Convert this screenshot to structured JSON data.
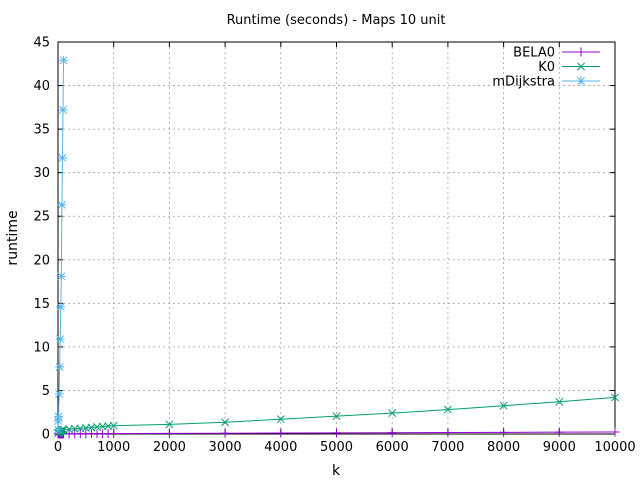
{
  "chart_data": {
    "type": "line",
    "title": "Runtime (seconds) - Maps 10 unit",
    "xlabel": "k",
    "ylabel": "runtime",
    "xlim": [
      0,
      10000
    ],
    "ylim": [
      0,
      45
    ],
    "xticks": [
      "0",
      "1000",
      "2000",
      "3000",
      "4000",
      "5000",
      "6000",
      "7000",
      "8000",
      "9000",
      "10000"
    ],
    "yticks": [
      "0",
      "5",
      "10",
      "15",
      "20",
      "25",
      "30",
      "35",
      "40",
      "45"
    ],
    "grid": true,
    "legend_position": "top-right",
    "series": [
      {
        "name": "BELA0",
        "color": "#9400d3",
        "marker": "plus",
        "x": [
          1,
          10,
          20,
          30,
          40,
          50,
          60,
          70,
          80,
          90,
          100,
          200,
          300,
          400,
          500,
          600,
          700,
          800,
          900,
          1000,
          2000,
          3000,
          4000,
          5000,
          6000,
          7000,
          8000,
          9000,
          10000
        ],
        "y": [
          0.01,
          0.01,
          0.01,
          0.01,
          0.01,
          0.01,
          0.01,
          0.01,
          0.01,
          0.01,
          0.02,
          0.02,
          0.03,
          0.03,
          0.03,
          0.04,
          0.04,
          0.04,
          0.05,
          0.05,
          0.07,
          0.09,
          0.11,
          0.13,
          0.15,
          0.17,
          0.19,
          0.21,
          0.23
        ]
      },
      {
        "name": "K0",
        "color": "#009e73",
        "marker": "x",
        "x": [
          1,
          10,
          20,
          30,
          40,
          50,
          60,
          70,
          80,
          90,
          100,
          200,
          300,
          400,
          500,
          600,
          700,
          800,
          900,
          1000,
          2000,
          3000,
          4000,
          5000,
          6000,
          7000,
          8000,
          9000,
          10000
        ],
        "y": [
          0.1,
          0.15,
          0.2,
          0.25,
          0.3,
          0.35,
          0.4,
          0.42,
          0.45,
          0.47,
          0.5,
          0.55,
          0.6,
          0.65,
          0.7,
          0.75,
          0.8,
          0.85,
          0.9,
          0.95,
          1.1,
          1.35,
          1.7,
          2.05,
          2.4,
          2.8,
          3.25,
          3.7,
          4.2
        ]
      },
      {
        "name": "mDijkstra",
        "color": "#56b4e9",
        "marker": "star",
        "x": [
          1,
          5,
          10,
          20,
          30,
          40,
          50,
          60,
          70,
          80,
          90,
          100
        ],
        "y": [
          0.5,
          1.5,
          2.0,
          4.6,
          7.7,
          10.9,
          14.6,
          18.1,
          26.3,
          31.7,
          37.2,
          42.9
        ]
      }
    ]
  }
}
